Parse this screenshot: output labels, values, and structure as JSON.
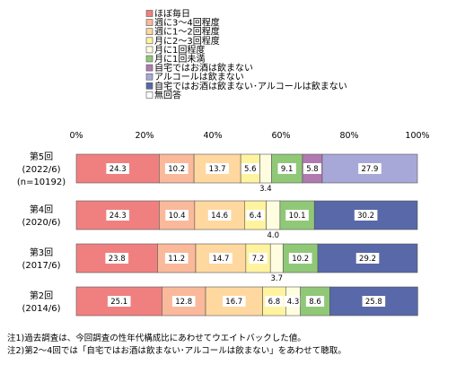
{
  "chart_data": {
    "type": "bar",
    "orientation": "horizontal",
    "stacked": true,
    "percent": true,
    "title": "",
    "xlabel": "",
    "ylabel": "",
    "xlim": [
      0,
      100
    ],
    "x_ticks": [
      "0%",
      "20%",
      "40%",
      "60%",
      "80%",
      "100%"
    ],
    "grid": false,
    "legend_position": "top",
    "categories": [
      [
        "第5回",
        "(2022/6)",
        "(n=10192)"
      ],
      [
        "第4回",
        "(2020/6)"
      ],
      [
        "第3回",
        "(2017/6)"
      ],
      [
        "第2回",
        "(2014/6)"
      ]
    ],
    "series": [
      {
        "name": "ほぼ毎日",
        "color": "#F08080",
        "values": [
          24.3,
          24.3,
          23.8,
          25.1
        ]
      },
      {
        "name": "週に3～4回程度",
        "color": "#FAB99A",
        "values": [
          10.2,
          10.4,
          11.2,
          12.8
        ]
      },
      {
        "name": "週に1～2回程度",
        "color": "#FFD8A0",
        "values": [
          13.7,
          14.6,
          14.7,
          16.7
        ]
      },
      {
        "name": "月に2～3回程度",
        "color": "#FFF3A0",
        "values": [
          5.6,
          6.4,
          7.2,
          6.8
        ]
      },
      {
        "name": "月に1回程度",
        "color": "#FFFDE0",
        "values": [
          3.4,
          4.0,
          3.7,
          4.3
        ]
      },
      {
        "name": "月に1回未満",
        "color": "#90C878",
        "values": [
          9.1,
          10.1,
          10.2,
          8.6
        ]
      },
      {
        "name": "自宅ではお酒は飲まない",
        "color": "#B07AB0",
        "values": [
          5.8,
          null,
          null,
          null
        ]
      },
      {
        "name": "アルコールは飲まない",
        "color": "#A8A8D8",
        "values": [
          27.9,
          null,
          null,
          null
        ]
      },
      {
        "name": "自宅ではお酒は飲まない･アルコールは飲まない",
        "color": "#5868A8",
        "values": [
          null,
          30.2,
          29.2,
          25.8
        ]
      },
      {
        "name": "無回答",
        "color": "#FFFFFF",
        "values": [
          null,
          null,
          null,
          null
        ]
      }
    ],
    "notes": [
      "注1)過去調査は、今回調査の性年代構成比にあわせてウエイトバックした値。",
      "注2)第2～4回では「自宅ではお酒は飲まない･アルコールは飲まない」をあわせて聴取。"
    ]
  }
}
